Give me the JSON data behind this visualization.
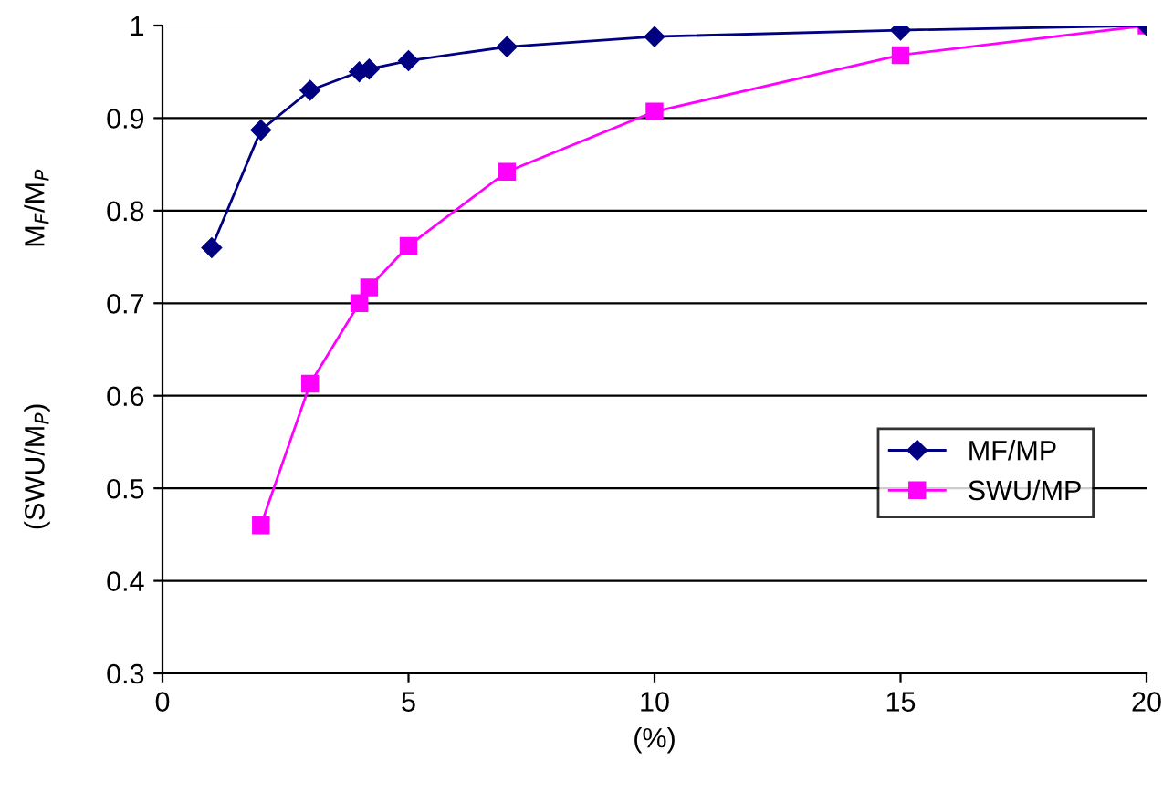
{
  "chart_data": {
    "type": "line",
    "xlabel": "(%)",
    "ylabel": "(SWU/M$_{P}$)                    M$_{F}$/M$_{P}$",
    "xlim": [
      0,
      20
    ],
    "ylim": [
      0.3,
      1
    ],
    "xticks": [
      0,
      5,
      10,
      15,
      20
    ],
    "yticks": [
      0.3,
      0.4,
      0.5,
      0.6,
      0.7,
      0.8,
      0.9,
      1
    ],
    "grid": "y",
    "legend": "lower right",
    "series": [
      {
        "name": "MF/MP",
        "color": "#000080",
        "marker": "diamond",
        "x": [
          1,
          2,
          3,
          4,
          4.2,
          5,
          7,
          10,
          15,
          20
        ],
        "values": [
          0.76,
          0.887,
          0.93,
          0.95,
          0.953,
          0.962,
          0.977,
          0.988,
          0.995,
          1.0
        ]
      },
      {
        "name": "SWU/MP",
        "color": "#ff00ff",
        "marker": "square",
        "x": [
          2,
          3,
          4,
          4.2,
          5,
          7,
          10,
          15,
          20
        ],
        "values": [
          0.46,
          0.613,
          0.7,
          0.717,
          0.762,
          0.842,
          0.907,
          0.968,
          1.0
        ]
      }
    ]
  }
}
